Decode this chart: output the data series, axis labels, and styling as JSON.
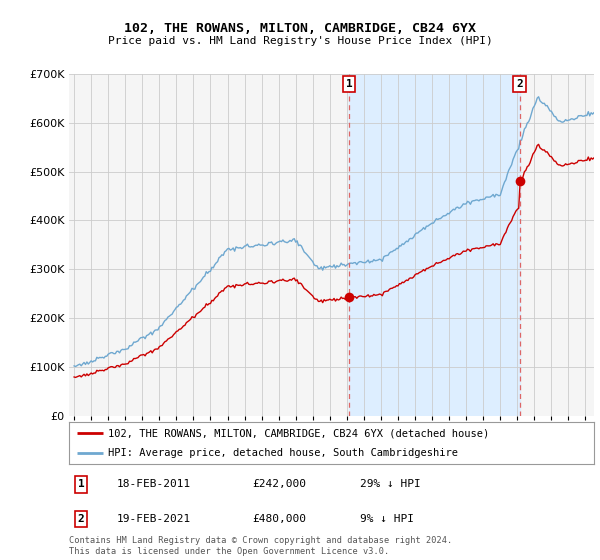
{
  "title": "102, THE ROWANS, MILTON, CAMBRIDGE, CB24 6YX",
  "subtitle": "Price paid vs. HM Land Registry's House Price Index (HPI)",
  "legend_label_red": "102, THE ROWANS, MILTON, CAMBRIDGE, CB24 6YX (detached house)",
  "legend_label_blue": "HPI: Average price, detached house, South Cambridgeshire",
  "footnote": "Contains HM Land Registry data © Crown copyright and database right 2024.\nThis data is licensed under the Open Government Licence v3.0.",
  "sale1_label": "1",
  "sale1_date": "18-FEB-2011",
  "sale1_price": "£242,000",
  "sale1_note": "29% ↓ HPI",
  "sale2_label": "2",
  "sale2_date": "19-FEB-2021",
  "sale2_price": "£480,000",
  "sale2_note": "9% ↓ HPI",
  "sale1_x": 2011.13,
  "sale1_y": 242000,
  "sale2_x": 2021.13,
  "sale2_y": 480000,
  "red_color": "#cc0000",
  "blue_color": "#6fa8d0",
  "vline_color": "#dd6666",
  "fill_color": "#ddeeff",
  "ylim": [
    0,
    700000
  ],
  "xlim": [
    1994.7,
    2025.5
  ],
  "background_color": "#f5f5f5",
  "grid_color": "#cccccc"
}
